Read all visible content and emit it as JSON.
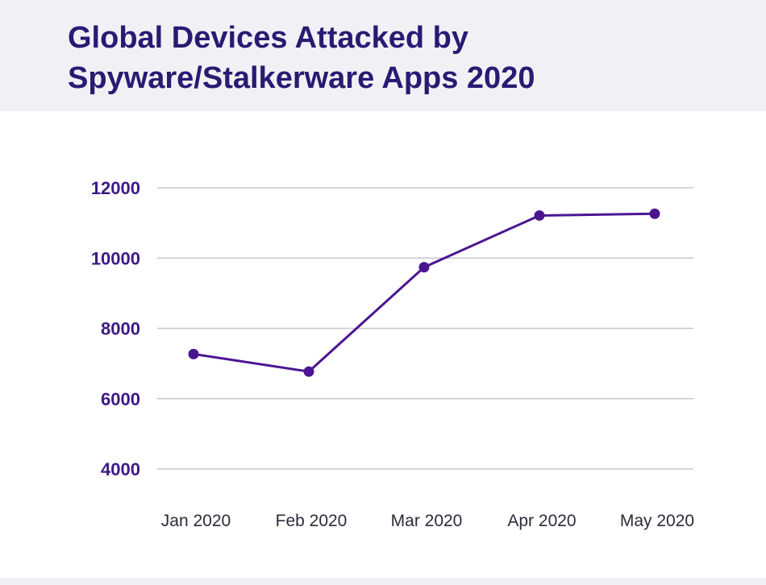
{
  "title": "Global Devices Attacked by Spyware/Stalkerware Apps 2020",
  "colors": {
    "header_bg": "#f1f1f5",
    "title": "#2a1a73",
    "line": "#4b1592",
    "axis_text": "#3d1a87",
    "grid": "#c8c8cc"
  },
  "chart_data": {
    "type": "line",
    "title": "Global Devices Attacked by Spyware/Stalkerware Apps 2020",
    "xlabel": "",
    "ylabel": "",
    "categories": [
      "Jan 2020",
      "Feb 2020",
      "Mar 2020",
      "Apr 2020",
      "May 2020"
    ],
    "series": [
      {
        "values": [
          7270,
          6770,
          9740,
          11210,
          11260
        ]
      }
    ],
    "ylim": [
      4000,
      12000
    ],
    "yticks": [
      "12000",
      "10000",
      "8000",
      "6000",
      "4000"
    ],
    "grid": true,
    "legend": "none"
  }
}
